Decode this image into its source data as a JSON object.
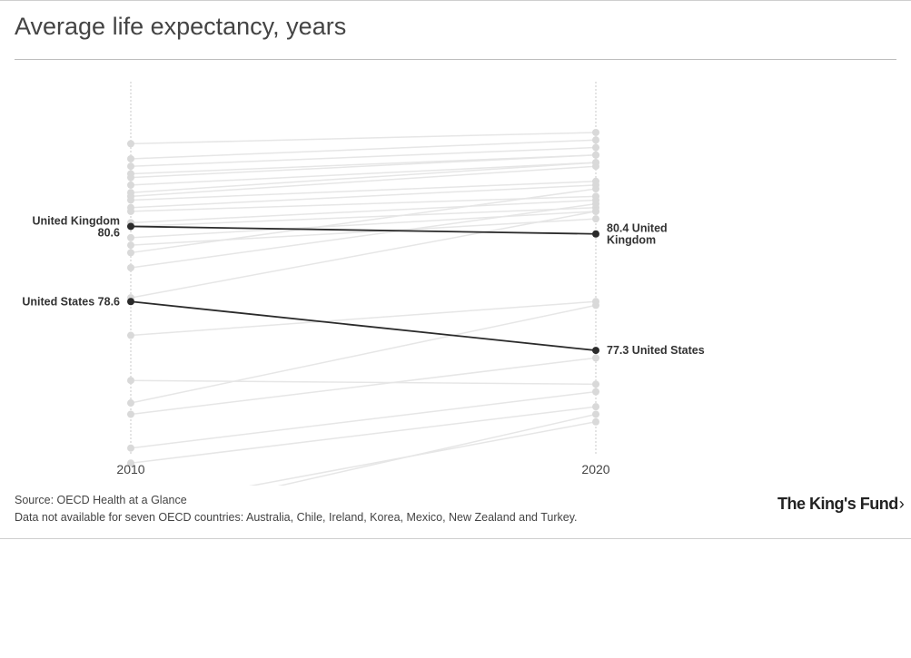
{
  "header": {
    "title": "Average life expectancy, years"
  },
  "footer": {
    "source": "Source: OECD Health at a Glance",
    "note": "Data not available for seven OECD countries: Australia, Chile, Ireland, Korea, Mexico, New Zealand and Turkey.",
    "logo_text": "The King's Fund",
    "logo_chevron": "›"
  },
  "colors": {
    "background_line": "#e6e6e6",
    "background_dot": "#d9d9d9",
    "highlight": "#2b2b2b",
    "axis": "#c8c8c8"
  },
  "chart_data": {
    "type": "slope",
    "x": [
      "2010",
      "2020"
    ],
    "ylim": [
      74.5,
      84.5
    ],
    "grid": false,
    "highlight_series": [
      {
        "name": "United Kingdom",
        "values": [
          80.6,
          80.4
        ],
        "label_start_line1": "United Kingdom",
        "label_start_line2": "80.6",
        "label_end_line1": "80.4 United",
        "label_end_line2": "Kingdom"
      },
      {
        "name": "United States",
        "values": [
          78.6,
          77.3
        ],
        "label_start_line1": "United States 78.6",
        "label_end_line1": "77.3 United States"
      }
    ],
    "background_series": [
      {
        "values": [
          82.8,
          83.1
        ]
      },
      {
        "values": [
          82.4,
          82.9
        ]
      },
      {
        "values": [
          82.2,
          82.7
        ]
      },
      {
        "values": [
          82.0,
          82.5
        ]
      },
      {
        "values": [
          81.9,
          82.5
        ]
      },
      {
        "values": [
          81.7,
          82.3
        ]
      },
      {
        "values": [
          81.5,
          82.3
        ]
      },
      {
        "values": [
          81.4,
          82.2
        ]
      },
      {
        "values": [
          81.3,
          81.8
        ]
      },
      {
        "values": [
          81.1,
          81.7
        ]
      },
      {
        "values": [
          81.0,
          81.4
        ]
      },
      {
        "values": [
          80.7,
          81.3
        ]
      },
      {
        "values": [
          80.6,
          81.1
        ]
      },
      {
        "values": [
          80.3,
          81.0
        ]
      },
      {
        "values": [
          80.1,
          80.8
        ]
      },
      {
        "values": [
          79.9,
          81.6
        ]
      },
      {
        "values": [
          79.5,
          81.2
        ]
      },
      {
        "values": [
          78.7,
          81.0
        ]
      },
      {
        "values": [
          77.7,
          78.6
        ]
      },
      {
        "values": [
          76.5,
          76.4
        ]
      },
      {
        "values": [
          75.9,
          78.5
        ]
      },
      {
        "values": [
          75.6,
          77.1
        ]
      },
      {
        "values": [
          74.7,
          76.2
        ]
      },
      {
        "values": [
          74.3,
          75.8
        ]
      },
      {
        "values": [
          73.1,
          75.4
        ]
      },
      {
        "values": [
          72.8,
          75.6
        ]
      }
    ]
  }
}
